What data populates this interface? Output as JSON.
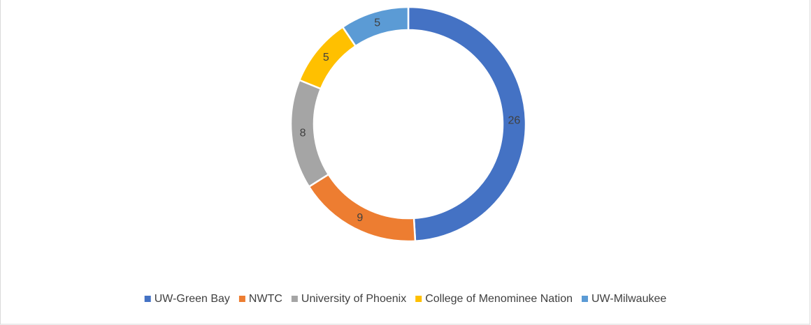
{
  "chart_data": {
    "type": "doughnut",
    "categories": [
      "UW-Green Bay",
      "NWTC",
      "University of Phoenix",
      "College of Menominee Nation",
      "UW-Milwaukee"
    ],
    "values": [
      26,
      9,
      8,
      5,
      5
    ],
    "colors": [
      "#4472c4",
      "#ed7d31",
      "#a5a5a5",
      "#ffc000",
      "#5b9bd5"
    ],
    "legend": "bottom"
  }
}
